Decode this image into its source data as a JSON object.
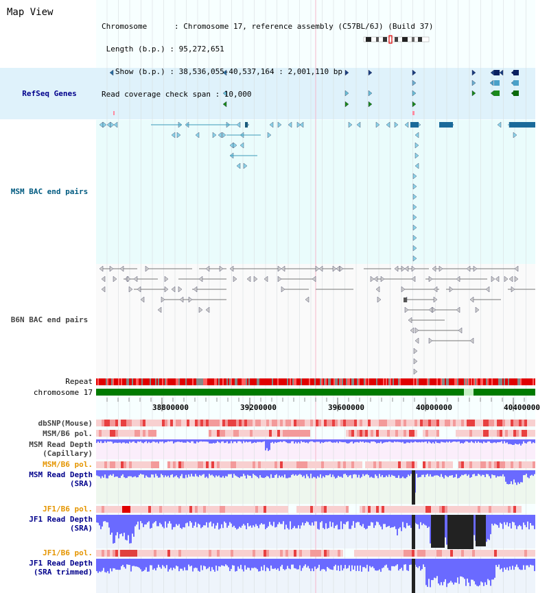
{
  "title": "Map View",
  "info": {
    "chromosome": "Chromosome      : Chromosome 17, reference assembly (C57BL/6J) (Build 37)",
    "length": " Length (b.p.) : 95,272,651",
    "show": "   Show (b.p.) : 38,536,055-40,537,164 : 2,001,110 bp",
    "coverage": "Read coverage check span : 10,000"
  },
  "tracks": {
    "refseq": "RefSeq Genes",
    "msm_bac": "MSM BAC end pairs",
    "b6n_bac": "B6N BAC end pairs",
    "repeat": "Repeat",
    "chromosome": "chromosome 17",
    "dbsnp": "dbSNP(Mouse)",
    "msm_b6_pol": "MSM/B6 pol.",
    "msm_depth_cap_1": "MSM Read Depth",
    "msm_depth_cap_2": "(Capillary)",
    "msm_b6_pol2": "MSM/B6 pol.",
    "msm_depth_sra_1": "MSM Read Depth",
    "msm_depth_sra_2": "(SRA)",
    "jf1_b6_pol": "JF1/B6 pol.",
    "jf1_depth_sra_1": "JF1 Read Depth",
    "jf1_depth_sra_2": "(SRA)",
    "jf1_b6_pol2": "JF1/B6 pol.",
    "jf1_depth_trim_1": "JF1 Read Depth",
    "jf1_depth_trim_2": "(SRA trimmed)"
  },
  "axis": {
    "ticks": [
      "38800000",
      "39200000",
      "39600000",
      "40000000",
      "40400000"
    ]
  },
  "colors": {
    "refseq_bg": "#dff2fb",
    "msm_bg": "#eafcfc",
    "snp": "#f08080",
    "depth": "#6a6aff",
    "black": "#222222",
    "green": "#007a00",
    "orange": "#e59500",
    "navy": "#00008b"
  }
}
